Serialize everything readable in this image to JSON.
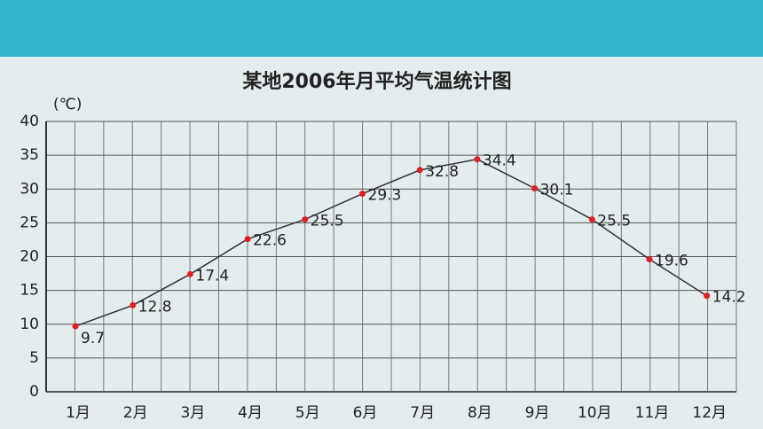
{
  "chart_data": {
    "type": "line",
    "title": "某地2006年月平均气温统计图",
    "y_label": "(℃)",
    "categories": [
      "1月",
      "2月",
      "3月",
      "4月",
      "5月",
      "6月",
      "7月",
      "8月",
      "9月",
      "10月",
      "11月",
      "12月"
    ],
    "values": [
      9.7,
      12.8,
      17.4,
      22.6,
      25.5,
      29.3,
      32.8,
      34.4,
      30.1,
      25.5,
      19.6,
      14.2
    ],
    "color": "#333333",
    "marker_color": "#e02020",
    "ylim": [
      0,
      40
    ],
    "yticks": [
      0,
      5,
      10,
      15,
      20,
      25,
      30,
      35,
      40
    ],
    "grid": true
  }
}
